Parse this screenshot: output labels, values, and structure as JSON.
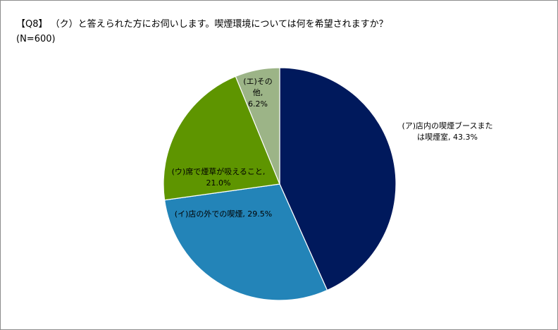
{
  "title": "【Q8】 （ク）と答えられた方にお伺いします。喫煙環境については何を希望されますか？",
  "subtitle": "(N=600)",
  "chart_data": {
    "type": "pie",
    "slices": [
      {
        "name": "(ア)店内の喫煙ブースまたは喫煙室",
        "value": 43.3,
        "label_lines": [
          "(ア)店内の喫煙ブースまた",
          "は喫煙室, 43.3%"
        ],
        "color": "#00195c"
      },
      {
        "name": "(イ)店の外での喫煙",
        "value": 29.5,
        "label_lines": [
          "(イ)店の外での喫煙, 29.5%"
        ],
        "color": "#2384b8"
      },
      {
        "name": "(ウ)席で煙草が吸えること",
        "value": 21.0,
        "label_lines": [
          "(ウ)席で煙草が吸えること,",
          "21.0%"
        ],
        "color": "#5e9500"
      },
      {
        "name": "(エ)その他",
        "value": 6.2,
        "label_lines": [
          "(エ)その",
          "他,",
          "6.2%"
        ],
        "color": "#9cb487"
      }
    ],
    "start_angle": "12 o'clock",
    "direction": "clockwise",
    "legend": "none"
  }
}
